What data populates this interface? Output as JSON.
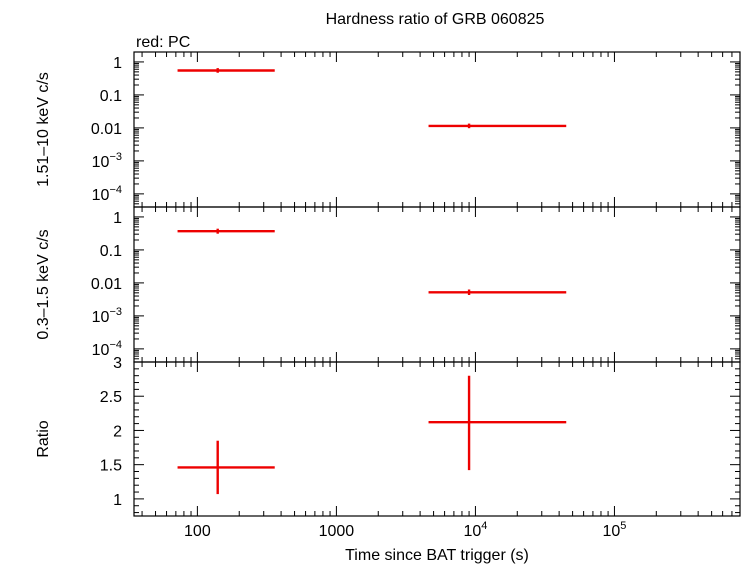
{
  "chart_data": {
    "type": "scatter",
    "title": "Hardness ratio of GRB 060825",
    "legend_note": "red: PC",
    "xlabel": "Time since BAT trigger (s)",
    "x_scale": "log",
    "xlim": [
      35,
      800000
    ],
    "x_ticks": [
      {
        "value": 100,
        "label": "100"
      },
      {
        "value": 1000,
        "label": "1000"
      },
      {
        "value": 10000,
        "base": "10",
        "exp": "4"
      },
      {
        "value": 100000,
        "base": "10",
        "exp": "5"
      }
    ],
    "series_color": "#ee0000",
    "panels": [
      {
        "name": "hard-band",
        "ylabel": "1.51–10 keV c/s",
        "y_scale": "log",
        "ylim": [
          4e-05,
          2
        ],
        "y_ticks": [
          {
            "value": 1,
            "label": "1"
          },
          {
            "value": 0.1,
            "label": "0.1"
          },
          {
            "value": 0.01,
            "label": "0.01"
          },
          {
            "value": 0.001,
            "base": "10",
            "exp": "−3"
          },
          {
            "value": 0.0001,
            "base": "10",
            "exp": "−4"
          }
        ],
        "points": [
          {
            "x": 140,
            "x_lo": 72,
            "x_hi": 360,
            "y": 0.55,
            "y_lo": 0.47,
            "y_hi": 0.65
          },
          {
            "x": 9000,
            "x_lo": 4600,
            "x_hi": 45000,
            "y": 0.0115,
            "y_lo": 0.0098,
            "y_hi": 0.0135
          }
        ]
      },
      {
        "name": "soft-band",
        "ylabel": "0.3–1.5 keV c/s",
        "y_scale": "log",
        "ylim": [
          4e-05,
          2
        ],
        "y_ticks": [
          {
            "value": 1,
            "label": "1"
          },
          {
            "value": 0.1,
            "label": "0.1"
          },
          {
            "value": 0.01,
            "label": "0.01"
          },
          {
            "value": 0.001,
            "base": "10",
            "exp": "−3"
          },
          {
            "value": 0.0001,
            "base": "10",
            "exp": "−4"
          }
        ],
        "points": [
          {
            "x": 140,
            "x_lo": 72,
            "x_hi": 360,
            "y": 0.37,
            "y_lo": 0.31,
            "y_hi": 0.44
          },
          {
            "x": 9000,
            "x_lo": 4600,
            "x_hi": 45000,
            "y": 0.0052,
            "y_lo": 0.0043,
            "y_hi": 0.0063
          }
        ]
      },
      {
        "name": "ratio",
        "ylabel": "Ratio",
        "y_scale": "linear",
        "ylim": [
          0.75,
          3
        ],
        "y_ticks": [
          {
            "value": 1,
            "label": "1"
          },
          {
            "value": 1.5,
            "label": "1.5"
          },
          {
            "value": 2,
            "label": "2"
          },
          {
            "value": 2.5,
            "label": "2.5"
          },
          {
            "value": 3,
            "label": "3"
          }
        ],
        "points": [
          {
            "x": 140,
            "x_lo": 72,
            "x_hi": 360,
            "y": 1.46,
            "y_lo": 1.07,
            "y_hi": 1.85
          },
          {
            "x": 9000,
            "x_lo": 4600,
            "x_hi": 45000,
            "y": 2.12,
            "y_lo": 1.42,
            "y_hi": 2.8
          }
        ]
      }
    ]
  }
}
